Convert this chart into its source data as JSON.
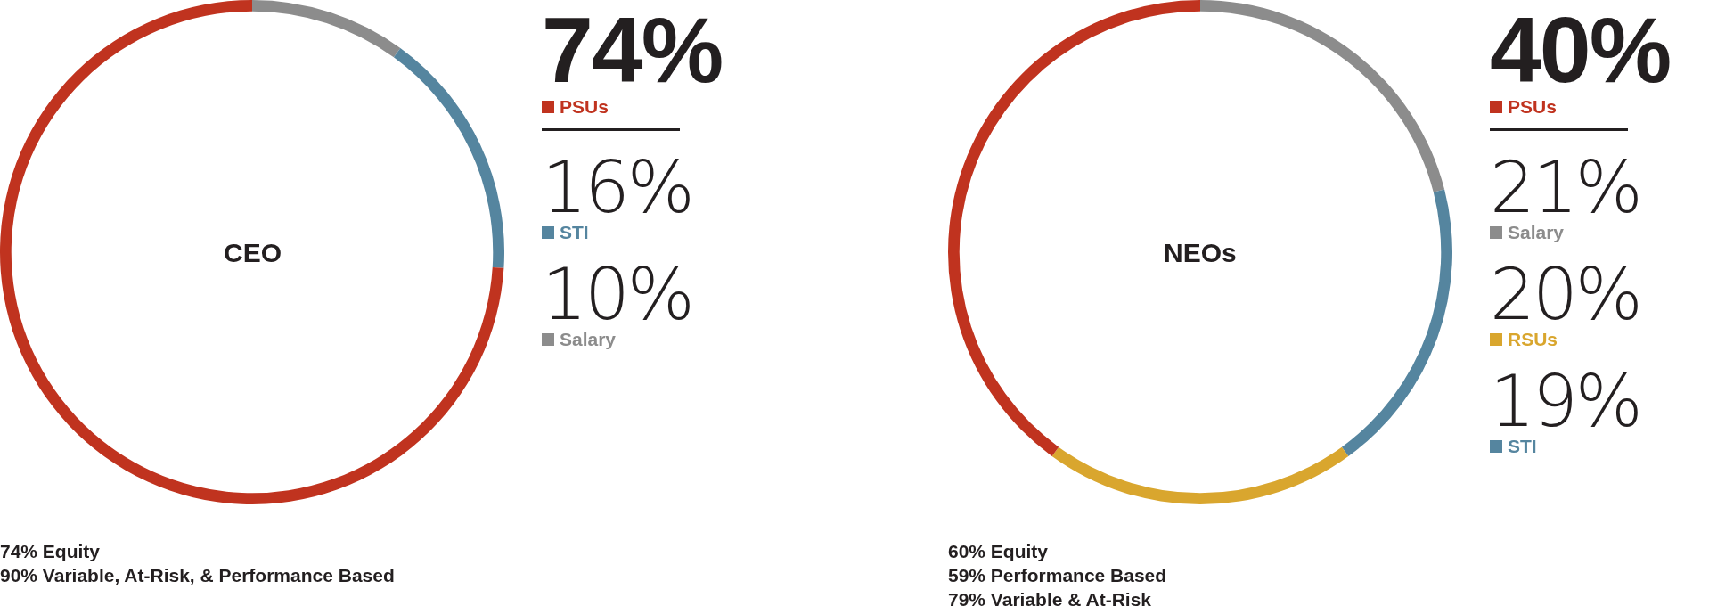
{
  "chart_data": [
    {
      "type": "donut",
      "title": "CEO",
      "categories": [
        "Salary",
        "STI",
        "PSUs"
      ],
      "values": [
        10,
        16,
        74
      ],
      "value_labels": [
        "10%",
        "16%",
        "74%"
      ],
      "colors": [
        "#8c8c8c",
        "#55859f",
        "#c0331f"
      ],
      "legend": "right",
      "annotations": [
        "74% Equity",
        "90% Variable, At-Risk, & Performance Based"
      ]
    },
    {
      "type": "donut",
      "title": "NEOs",
      "categories": [
        "Salary",
        "STI",
        "RSUs",
        "PSUs"
      ],
      "values": [
        21,
        19,
        20,
        40
      ],
      "value_labels": [
        "21%",
        "19%",
        "20%",
        "40%"
      ],
      "colors": [
        "#8c8c8c",
        "#55859f",
        "#d9a62e",
        "#c0331f"
      ],
      "legend": "right",
      "annotations": [
        "60% Equity",
        "59% Performance Based",
        "79% Variable & At-Risk"
      ]
    }
  ]
}
